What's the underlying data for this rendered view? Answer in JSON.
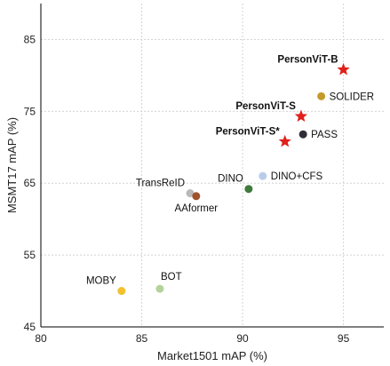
{
  "chart_data": {
    "type": "scatter",
    "title": "",
    "xlabel": "Market1501 mAP (%)",
    "ylabel": "MSMT17 mAP (%)",
    "xlim": [
      80,
      97
    ],
    "ylim": [
      45,
      90
    ],
    "xticks": [
      80,
      85,
      90,
      95
    ],
    "yticks": [
      45,
      55,
      65,
      75,
      85
    ],
    "grid": true,
    "points": [
      {
        "label": "PersonViT-B",
        "x": 95.0,
        "y": 80.8,
        "color": "#e0201b",
        "marker": "star",
        "bold": true,
        "label_pos": "above-left"
      },
      {
        "label": "SOLIDER",
        "x": 93.9,
        "y": 77.1,
        "color": "#c49a2a",
        "marker": "circle",
        "bold": false,
        "label_pos": "right"
      },
      {
        "label": "PersonViT-S",
        "x": 92.9,
        "y": 74.3,
        "color": "#e0201b",
        "marker": "star",
        "bold": true,
        "label_pos": "above-left"
      },
      {
        "label": "PASS",
        "x": 93.0,
        "y": 71.8,
        "color": "#2e2f36",
        "marker": "circle",
        "bold": false,
        "label_pos": "right"
      },
      {
        "label": "PersonViT-S*",
        "x": 92.1,
        "y": 70.8,
        "color": "#e0201b",
        "marker": "star",
        "bold": true,
        "label_pos": "above-left"
      },
      {
        "label": "DINO+CFS",
        "x": 91.0,
        "y": 66.0,
        "color": "#b9cdea",
        "marker": "circle",
        "bold": false,
        "label_pos": "right"
      },
      {
        "label": "DINO",
        "x": 90.3,
        "y": 64.2,
        "color": "#3f7a3c",
        "marker": "circle",
        "bold": false,
        "label_pos": "above-left"
      },
      {
        "label": "TransReID",
        "x": 87.4,
        "y": 63.6,
        "color": "#b9b9b9",
        "marker": "circle",
        "bold": false,
        "label_pos": "above-left"
      },
      {
        "label": "AAformer",
        "x": 87.7,
        "y": 63.2,
        "color": "#a0522d",
        "marker": "circle",
        "bold": false,
        "label_pos": "below"
      },
      {
        "label": "BOT",
        "x": 85.9,
        "y": 50.3,
        "color": "#b3d39a",
        "marker": "circle",
        "bold": false,
        "label_pos": "above-right"
      },
      {
        "label": "MOBY",
        "x": 84.0,
        "y": 50.0,
        "color": "#f2c12e",
        "marker": "circle",
        "bold": false,
        "label_pos": "above-left"
      }
    ]
  }
}
